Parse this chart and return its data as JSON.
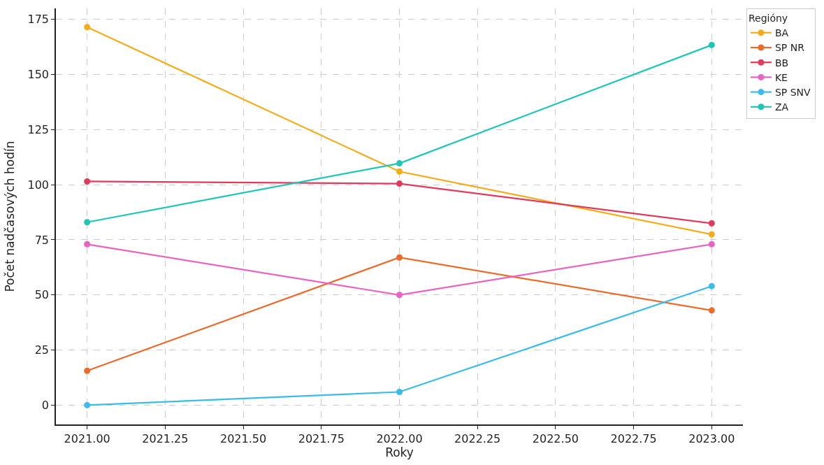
{
  "chart_data": {
    "type": "line",
    "xlabel": "Roky",
    "ylabel": "Počet nadčasových hodín",
    "legend_title": "Regióny",
    "x": [
      2021,
      2022,
      2023
    ],
    "series": [
      {
        "name": "BA",
        "color": "#f5ac1a",
        "values": [
          171.5,
          106,
          77.5
        ]
      },
      {
        "name": "SP NR",
        "color": "#ea6b2a",
        "values": [
          15.6,
          67,
          43
        ]
      },
      {
        "name": "BB",
        "color": "#e03a5c",
        "values": [
          101.5,
          100.5,
          82.5
        ]
      },
      {
        "name": "KE",
        "color": "#e963c2",
        "values": [
          73,
          50,
          73
        ]
      },
      {
        "name": "SP SNV",
        "color": "#3bbbec",
        "values": [
          0,
          6,
          54
        ]
      },
      {
        "name": "ZA",
        "color": "#1ec6b8",
        "values": [
          83,
          109.7,
          163.4
        ]
      }
    ],
    "xlim": [
      2020.9,
      2023.1
    ],
    "xticks": [
      {
        "value": 2021,
        "label": "2021.00"
      },
      {
        "value": 2021.25,
        "label": "2021.25"
      },
      {
        "value": 2021.5,
        "label": "2021.50"
      },
      {
        "value": 2021.75,
        "label": "2021.75"
      },
      {
        "value": 2022,
        "label": "2022.00"
      },
      {
        "value": 2022.25,
        "label": "2022.25"
      },
      {
        "value": 2022.5,
        "label": "2022.50"
      },
      {
        "value": 2022.75,
        "label": "2022.75"
      },
      {
        "value": 2023,
        "label": "2023.00"
      }
    ],
    "ylim": [
      -8.75,
      180
    ],
    "yticks": [
      0,
      25,
      50,
      75,
      100,
      125,
      150,
      175
    ],
    "grid": true,
    "legend": "top right",
    "marker": "circle",
    "line_style": "solid"
  }
}
